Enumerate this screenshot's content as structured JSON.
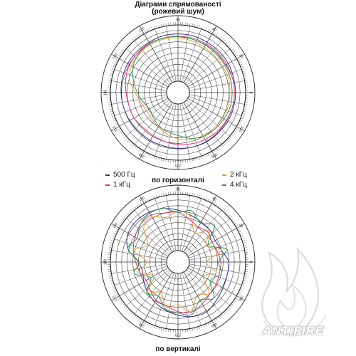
{
  "header": {
    "title_line1": "Діаграми спрямованості",
    "title_line2": "(рожевий шум)"
  },
  "captions": {
    "horizontal": "по горизонталі",
    "vertical": "по вертикалі"
  },
  "legend": [
    {
      "label": "500 Гц",
      "color": "#3a2f8a"
    },
    {
      "label": "1 кГц",
      "color": "#e0306a"
    },
    {
      "label": "2 кГц",
      "color": "#e89a3a"
    },
    {
      "label": "4 кГц",
      "color": "#2e9a5a"
    }
  ],
  "logo": {
    "text": "ANTIFIRE",
    "icon": "flame-icon"
  },
  "chart_data": [
    {
      "type": "polar",
      "name": "по горизонталі",
      "angle_labels": [
        "0",
        "30",
        "60",
        "90",
        "120",
        "150",
        "180",
        "210",
        "240",
        "270",
        "300",
        "330"
      ],
      "radial_range": [
        0,
        1
      ],
      "grid": true,
      "series": [
        {
          "name": "500 Гц",
          "color": "#3a2f8a",
          "values": [
            0.82,
            0.82,
            0.83,
            0.83,
            0.83,
            0.84,
            0.84,
            0.84,
            0.83,
            0.83,
            0.83,
            0.82,
            0.81,
            0.8,
            0.79,
            0.78,
            0.78,
            0.78,
            0.79,
            0.8,
            0.81,
            0.81,
            0.82,
            0.82
          ]
        },
        {
          "name": "1 кГц",
          "color": "#e0306a",
          "values": [
            0.8,
            0.8,
            0.78,
            0.78,
            0.78,
            0.78,
            0.8,
            0.8,
            0.81,
            0.8,
            0.79,
            0.76,
            0.72,
            0.7,
            0.7,
            0.68,
            0.68,
            0.7,
            0.72,
            0.74,
            0.76,
            0.78,
            0.79,
            0.8
          ]
        },
        {
          "name": "2 кГц",
          "color": "#e89a3a",
          "values": [
            0.72,
            0.73,
            0.72,
            0.72,
            0.73,
            0.75,
            0.77,
            0.78,
            0.78,
            0.77,
            0.75,
            0.69,
            0.56,
            0.48,
            0.44,
            0.46,
            0.5,
            0.56,
            0.62,
            0.66,
            0.68,
            0.7,
            0.71,
            0.72
          ]
        },
        {
          "name": "4 кГц",
          "color": "#2e9a5a",
          "values": [
            0.76,
            0.76,
            0.76,
            0.76,
            0.77,
            0.78,
            0.79,
            0.8,
            0.8,
            0.78,
            0.72,
            0.62,
            0.52,
            0.44,
            0.38,
            0.42,
            0.48,
            0.52,
            0.56,
            0.64,
            0.7,
            0.72,
            0.74,
            0.76
          ]
        }
      ]
    },
    {
      "type": "polar",
      "name": "по вертикалі",
      "angle_labels": [
        "0",
        "30",
        "60",
        "90",
        "120",
        "150",
        "180",
        "210",
        "240",
        "270",
        "300",
        "330"
      ],
      "radial_range": [
        0,
        1
      ],
      "grid": true,
      "series": [
        {
          "name": "500 Гц",
          "color": "#3a2f8a",
          "values": [
            0.7,
            0.6,
            0.56,
            0.6,
            0.62,
            0.66,
            0.72,
            0.78,
            0.82,
            0.84,
            0.82,
            0.72,
            0.5,
            0.45,
            0.5,
            0.56,
            0.62,
            0.68,
            0.74,
            0.8,
            0.82,
            0.76,
            0.72,
            0.7
          ]
        },
        {
          "name": "1 кГц",
          "color": "#e0306a",
          "values": [
            0.56,
            0.52,
            0.5,
            0.55,
            0.52,
            0.58,
            0.68,
            0.7,
            0.76,
            0.74,
            0.68,
            0.62,
            0.55,
            0.5,
            0.45,
            0.5,
            0.58,
            0.6,
            0.68,
            0.72,
            0.66,
            0.6,
            0.58,
            0.56
          ]
        },
        {
          "name": "2 кГц",
          "color": "#e89a3a",
          "values": [
            0.3,
            0.6,
            0.38,
            0.58,
            0.4,
            0.64,
            0.7,
            0.62,
            0.72,
            0.66,
            0.42,
            0.6,
            0.36,
            0.54,
            0.3,
            0.56,
            0.42,
            0.62,
            0.56,
            0.7,
            0.48,
            0.58,
            0.32,
            0.5
          ]
        },
        {
          "name": "4 кГц",
          "color": "#2e9a5a",
          "values": [
            0.52,
            0.68,
            0.42,
            0.72,
            0.6,
            0.74,
            0.68,
            0.78,
            0.8,
            0.74,
            0.64,
            0.72,
            0.5,
            0.6,
            0.36,
            0.58,
            0.5,
            0.66,
            0.7,
            0.76,
            0.58,
            0.7,
            0.46,
            0.6
          ]
        }
      ]
    }
  ]
}
